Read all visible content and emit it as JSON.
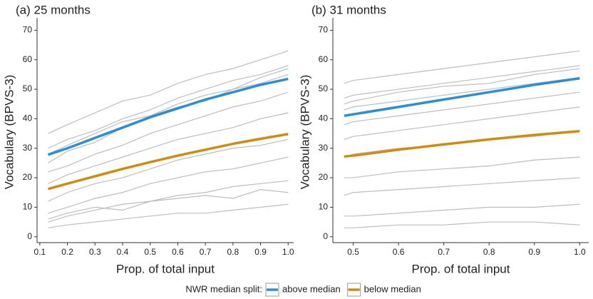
{
  "chart_data": [
    {
      "type": "line",
      "title": "(a) 25 months",
      "x_label": "Prop. of total input",
      "y_label": "Vocabulary (BPVS-3)",
      "legend_title": "NWR median split:",
      "x": [
        0.13,
        0.2,
        0.3,
        0.4,
        0.5,
        0.6,
        0.7,
        0.8,
        0.9,
        1.0
      ],
      "xlim": [
        0.09,
        1.02
      ],
      "xticks": [
        0.1,
        0.2,
        0.3,
        0.4,
        0.5,
        0.6,
        0.7,
        0.8,
        0.9,
        {
          "value": 1.0,
          "label": "1.0"
        }
      ],
      "ylim": [
        -2,
        73
      ],
      "yticks": [
        0,
        10,
        20,
        30,
        40,
        50,
        60,
        70
      ],
      "series": [
        {
          "color": "#bdbdbd",
          "values": [
            35,
            38,
            42,
            46,
            48,
            52,
            55,
            57,
            60,
            63
          ]
        },
        {
          "color": "#bdbdbd",
          "values": [
            30,
            33,
            36,
            40,
            43,
            47,
            50,
            53,
            55,
            58
          ]
        },
        {
          "color": "#bdbdbd",
          "values": [
            25,
            29,
            32,
            37,
            41,
            44,
            46,
            50,
            52,
            55
          ]
        },
        {
          "color": "#bdbdbd",
          "values": [
            22,
            24,
            28,
            31,
            35,
            38,
            41,
            44,
            46,
            49
          ]
        },
        {
          "color": "#bdbdbd",
          "values": [
            18,
            21,
            24,
            27,
            30,
            33,
            35,
            37,
            40,
            42
          ]
        },
        {
          "color": "#bdbdbd",
          "values": [
            12,
            15,
            18,
            20,
            23,
            26,
            28,
            30,
            31,
            33
          ]
        },
        {
          "color": "#bdbdbd",
          "values": [
            8,
            10,
            13,
            15,
            18,
            20,
            22,
            23,
            25,
            27
          ]
        },
        {
          "color": "#bdbdbd",
          "values": [
            5,
            7,
            9,
            11,
            12,
            14,
            15,
            17,
            18,
            19
          ]
        },
        {
          "color": "#bdbdbd",
          "values": [
            3,
            4,
            5,
            6,
            7,
            8,
            8,
            9,
            10,
            11
          ]
        },
        {
          "color": "#bdbdbd",
          "values": [
            28,
            31,
            35,
            39,
            41,
            45,
            48,
            50,
            54,
            57
          ]
        },
        {
          "color": "#bdbdbd",
          "values": [
            6,
            8,
            10,
            9,
            12,
            13,
            14,
            13,
            16,
            15
          ]
        },
        {
          "name": "above median",
          "color": "#2b8fd8",
          "values": [
            27.8,
            30,
            33.5,
            37,
            40.5,
            43.5,
            46.5,
            49,
            51.5,
            53.5
          ]
        },
        {
          "name": "below median",
          "color": "#d08c10",
          "values": [
            16.2,
            18,
            20.5,
            23,
            25.3,
            27.5,
            29.5,
            31.5,
            33.2,
            34.8
          ]
        }
      ]
    },
    {
      "type": "line",
      "title": "(b) 31 months",
      "x_label": "Prop. of total input",
      "y_label": "Vocabulary (BPVS-3)",
      "x": [
        0.48,
        0.5,
        0.6,
        0.7,
        0.8,
        0.9,
        1.0
      ],
      "xlim": [
        0.455,
        1.02
      ],
      "xticks": [
        0.5,
        0.6,
        0.7,
        0.8,
        0.9,
        {
          "value": 1.0,
          "label": "1.0"
        }
      ],
      "ylim": [
        -2,
        73
      ],
      "yticks": [
        0,
        10,
        20,
        30,
        40,
        50,
        60,
        70
      ],
      "series": [
        {
          "color": "#bdbdbd",
          "values": [
            52,
            53,
            55,
            57,
            59,
            61,
            63
          ]
        },
        {
          "color": "#bdbdbd",
          "values": [
            47,
            48,
            50,
            52,
            54,
            56,
            58
          ]
        },
        {
          "color": "#bdbdbd",
          "values": [
            43,
            44,
            46,
            48,
            50,
            52,
            54
          ]
        },
        {
          "color": "#bdbdbd",
          "values": [
            38,
            39,
            41,
            43,
            45,
            47,
            49
          ]
        },
        {
          "color": "#bdbdbd",
          "values": [
            33,
            34,
            36,
            38,
            40,
            42,
            44
          ]
        },
        {
          "color": "#bdbdbd",
          "values": [
            27,
            28,
            30,
            31,
            33,
            34,
            36
          ]
        },
        {
          "color": "#bdbdbd",
          "values": [
            20,
            20,
            22,
            23,
            24,
            26,
            27
          ]
        },
        {
          "color": "#bdbdbd",
          "values": [
            14,
            15,
            16,
            17,
            18,
            19,
            20
          ]
        },
        {
          "color": "#bdbdbd",
          "values": [
            7,
            7,
            8,
            9,
            10,
            10,
            11
          ]
        },
        {
          "color": "#bdbdbd",
          "values": [
            3,
            3,
            4,
            4,
            5,
            5,
            4
          ]
        },
        {
          "color": "#bdbdbd",
          "values": [
            45,
            46,
            49,
            51,
            52,
            55,
            57
          ]
        },
        {
          "name": "above median",
          "color": "#2b8fd8",
          "values": [
            41,
            41.5,
            44,
            46.5,
            49,
            51.5,
            53.7
          ]
        },
        {
          "name": "below median",
          "color": "#d08c10",
          "values": [
            27.2,
            27.5,
            29.5,
            31.3,
            33,
            34.5,
            35.8
          ]
        }
      ]
    }
  ]
}
